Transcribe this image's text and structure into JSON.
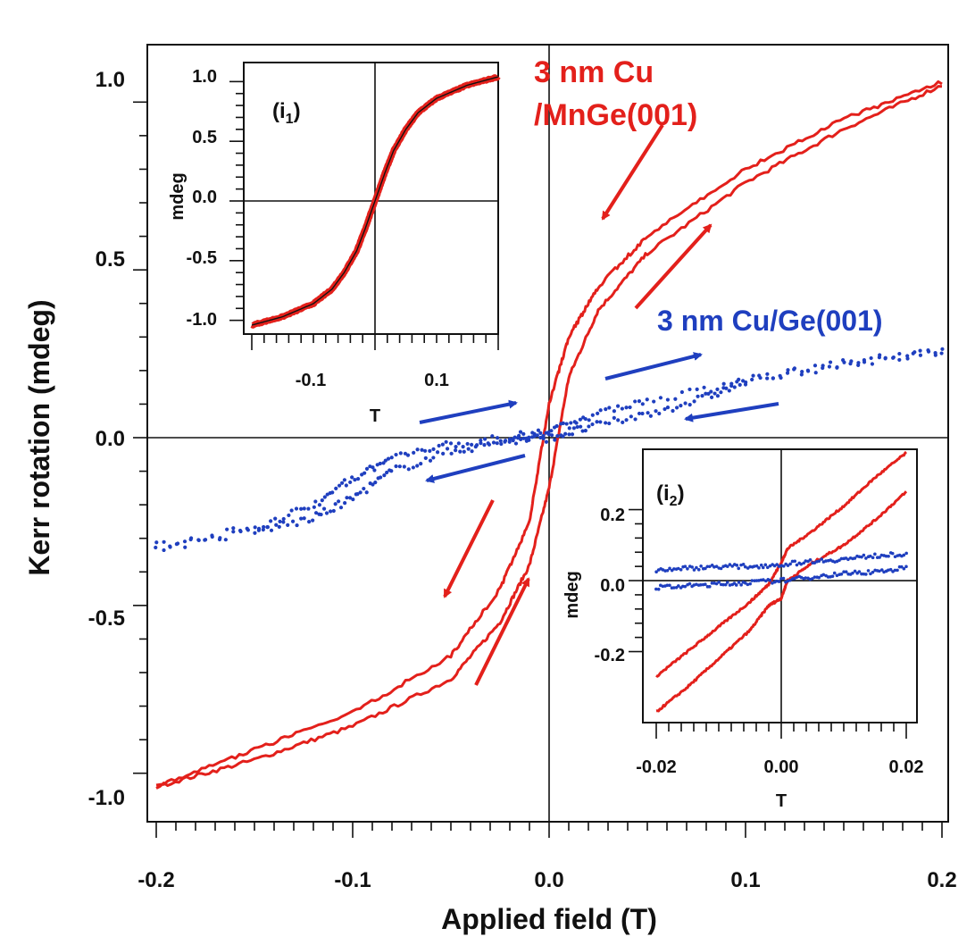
{
  "chart_data": [
    {
      "id": "main",
      "type": "line",
      "xlabel": "Applied field (T)",
      "ylabel": "Kerr rotation (mdeg)",
      "xlim": [
        -0.2,
        0.2
      ],
      "ylim": [
        -1.07,
        1.07
      ],
      "xticks": [
        -0.2,
        -0.1,
        0.0,
        0.1,
        0.2
      ],
      "xtick_labels": [
        "-0.2",
        "-0.1",
        "0.0",
        "0.1",
        "0.2"
      ],
      "yticks": [
        -1.0,
        -0.5,
        0.0,
        0.5,
        1.0
      ],
      "ytick_labels": [
        "-1.0",
        "-0.5",
        "0.0",
        "0.5",
        "1.0"
      ],
      "annotations": [
        {
          "text": "3 nm Cu",
          "color": "#e3201b"
        },
        {
          "text": "/MnGe(001)",
          "color": "#e3201b"
        },
        {
          "text": "3 nm Cu/Ge(001)",
          "color": "#1f3fbf"
        }
      ],
      "series": [
        {
          "name": "3 nm Cu/MnGe(001) descending branch",
          "style": "line",
          "color": "#e3201b",
          "x": [
            0.2,
            0.15,
            0.1,
            0.05,
            0.025,
            0.01,
            0.0,
            -0.01,
            -0.025,
            -0.05,
            -0.1,
            -0.15,
            -0.2
          ],
          "y": [
            1.06,
            0.95,
            0.8,
            0.6,
            0.45,
            0.3,
            0.1,
            -0.25,
            -0.45,
            -0.65,
            -0.82,
            -0.93,
            -1.04
          ]
        },
        {
          "name": "3 nm Cu/MnGe(001) ascending branch",
          "style": "line",
          "color": "#e3201b",
          "x": [
            -0.2,
            -0.15,
            -0.1,
            -0.05,
            -0.025,
            -0.01,
            0.0,
            0.01,
            0.025,
            0.05,
            0.1,
            0.15,
            0.2
          ],
          "y": [
            -1.04,
            -0.96,
            -0.86,
            -0.72,
            -0.55,
            -0.38,
            -0.15,
            0.18,
            0.38,
            0.55,
            0.76,
            0.92,
            1.05
          ]
        },
        {
          "name": "3 nm Cu/Ge(001) branch 1",
          "style": "dots",
          "color": "#1f3fbf",
          "x": [
            0.2,
            0.15,
            0.1,
            0.05,
            0.02,
            0.0,
            -0.02,
            -0.05,
            -0.08,
            -0.1,
            -0.12,
            -0.15,
            -0.2
          ],
          "y": [
            0.26,
            0.22,
            0.17,
            0.11,
            0.06,
            0.02,
            0.0,
            -0.02,
            -0.06,
            -0.12,
            -0.2,
            -0.27,
            -0.32
          ]
        },
        {
          "name": "3 nm Cu/Ge(001) branch 2",
          "style": "dots",
          "color": "#1f3fbf",
          "x": [
            -0.2,
            -0.15,
            -0.12,
            -0.1,
            -0.08,
            -0.05,
            -0.02,
            0.0,
            0.02,
            0.05,
            0.08,
            0.1,
            0.15,
            0.2
          ],
          "y": [
            -0.33,
            -0.28,
            -0.24,
            -0.18,
            -0.1,
            -0.04,
            -0.01,
            0.0,
            0.03,
            0.07,
            0.12,
            0.17,
            0.22,
            0.26
          ]
        }
      ]
    },
    {
      "id": "inset_i1",
      "type": "line",
      "label": "(i1)",
      "xlabel": "T",
      "ylabel": "mdeg",
      "xlim": [
        -0.2,
        0.2
      ],
      "ylim": [
        -1.07,
        1.07
      ],
      "xticks": [
        -0.1,
        0.1
      ],
      "xtick_labels": [
        "-0.1",
        "0.1"
      ],
      "yticks": [
        -1.0,
        -0.5,
        0.0,
        0.5,
        1.0
      ],
      "ytick_labels": [
        "-1.0",
        "-0.5",
        "0.0",
        "0.5",
        "1.0"
      ],
      "series": [
        {
          "name": "data",
          "style": "thick",
          "color": "#e3201b",
          "x": [
            -0.2,
            -0.15,
            -0.1,
            -0.07,
            -0.05,
            -0.03,
            -0.015,
            0.0,
            0.015,
            0.03,
            0.05,
            0.07,
            0.1,
            0.15,
            0.2
          ],
          "y": [
            -1.04,
            -0.97,
            -0.86,
            -0.74,
            -0.6,
            -0.42,
            -0.22,
            0.0,
            0.22,
            0.42,
            0.6,
            0.74,
            0.86,
            0.97,
            1.04
          ]
        },
        {
          "name": "fit",
          "style": "thin",
          "color": "#111111",
          "x": [
            -0.2,
            -0.15,
            -0.1,
            -0.07,
            -0.05,
            -0.03,
            -0.015,
            0.0,
            0.015,
            0.03,
            0.05,
            0.07,
            0.1,
            0.15,
            0.2
          ],
          "y": [
            -1.04,
            -0.97,
            -0.86,
            -0.74,
            -0.6,
            -0.42,
            -0.22,
            0.0,
            0.22,
            0.42,
            0.6,
            0.74,
            0.86,
            0.97,
            1.04
          ]
        }
      ]
    },
    {
      "id": "inset_i2",
      "type": "line",
      "label": "(i2)",
      "xlabel": "T",
      "ylabel": "mdeg",
      "xlim": [
        -0.02,
        0.02
      ],
      "ylim": [
        -0.4,
        0.37
      ],
      "xticks": [
        -0.02,
        0.0,
        0.02
      ],
      "xtick_labels": [
        "-0.02",
        "0.00",
        "0.02"
      ],
      "yticks": [
        -0.2,
        0.0,
        0.2
      ],
      "ytick_labels": [
        "-0.2",
        "0.0",
        "0.2"
      ],
      "series": [
        {
          "name": "MnGe upper branch",
          "style": "line",
          "color": "#e3201b",
          "x": [
            -0.02,
            -0.015,
            -0.01,
            -0.005,
            -0.002,
            0.0,
            0.001,
            0.005,
            0.01,
            0.015,
            0.02
          ],
          "y": [
            -0.27,
            -0.2,
            -0.13,
            -0.06,
            -0.01,
            0.05,
            0.09,
            0.14,
            0.21,
            0.29,
            0.36
          ]
        },
        {
          "name": "MnGe lower branch",
          "style": "line",
          "color": "#e3201b",
          "x": [
            -0.02,
            -0.015,
            -0.01,
            -0.005,
            -0.002,
            0.0,
            0.001,
            0.005,
            0.01,
            0.015,
            0.02
          ],
          "y": [
            -0.37,
            -0.3,
            -0.22,
            -0.14,
            -0.07,
            -0.05,
            0.0,
            0.05,
            0.1,
            0.17,
            0.25
          ]
        },
        {
          "name": "Ge branch 1",
          "style": "dots",
          "color": "#1f3fbf",
          "x": [
            -0.02,
            -0.015,
            -0.01,
            -0.005,
            0.0,
            0.005,
            0.01,
            0.015,
            0.02
          ],
          "y": [
            0.03,
            0.035,
            0.04,
            0.04,
            0.045,
            0.055,
            0.06,
            0.07,
            0.075
          ]
        },
        {
          "name": "Ge branch 2",
          "style": "dots",
          "color": "#1f3fbf",
          "x": [
            -0.02,
            -0.015,
            -0.01,
            -0.005,
            0.0,
            0.005,
            0.01,
            0.015,
            0.02
          ],
          "y": [
            -0.02,
            -0.015,
            -0.01,
            -0.005,
            0.0,
            0.01,
            0.02,
            0.025,
            0.035
          ]
        }
      ]
    }
  ]
}
